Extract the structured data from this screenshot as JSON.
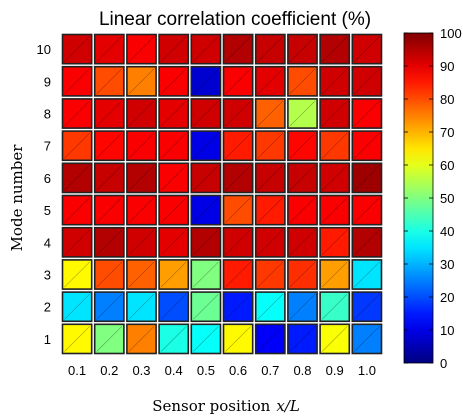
{
  "chart_data": {
    "type": "heatmap",
    "title": "Linear correlation coefficient (%)",
    "xlabel": "Sensor position",
    "xlabel_math": "x/L",
    "ylabel": "Mode number",
    "x": [
      "0.1",
      "0.2",
      "0.3",
      "0.4",
      "0.5",
      "0.6",
      "0.7",
      "0.8",
      "0.9",
      "1.0"
    ],
    "y": [
      "1",
      "2",
      "3",
      "4",
      "5",
      "6",
      "7",
      "8",
      "9",
      "10"
    ],
    "values": [
      [
        63,
        50,
        75,
        40,
        38,
        63,
        12,
        15,
        62,
        25
      ],
      [
        35,
        25,
        35,
        20,
        48,
        15,
        38,
        25,
        43,
        18
      ],
      [
        63,
        80,
        78,
        72,
        50,
        85,
        82,
        83,
        72,
        35
      ],
      [
        92,
        95,
        92,
        90,
        95,
        92,
        92,
        92,
        85,
        95
      ],
      [
        88,
        88,
        88,
        88,
        10,
        80,
        85,
        88,
        88,
        88
      ],
      [
        95,
        93,
        95,
        88,
        93,
        95,
        93,
        93,
        92,
        97
      ],
      [
        82,
        87,
        88,
        88,
        10,
        85,
        82,
        87,
        82,
        88
      ],
      [
        88,
        90,
        92,
        90,
        92,
        92,
        78,
        55,
        92,
        88
      ],
      [
        88,
        80,
        75,
        88,
        8,
        88,
        90,
        80,
        92,
        92
      ],
      [
        92,
        90,
        88,
        92,
        92,
        95,
        93,
        93,
        95,
        92
      ]
    ],
    "colorbar": {
      "range": [
        0,
        100
      ],
      "ticks": [
        "0",
        "10",
        "20",
        "30",
        "40",
        "50",
        "60",
        "70",
        "80",
        "90",
        "100"
      ],
      "colormap": "jet"
    },
    "grid": false
  }
}
